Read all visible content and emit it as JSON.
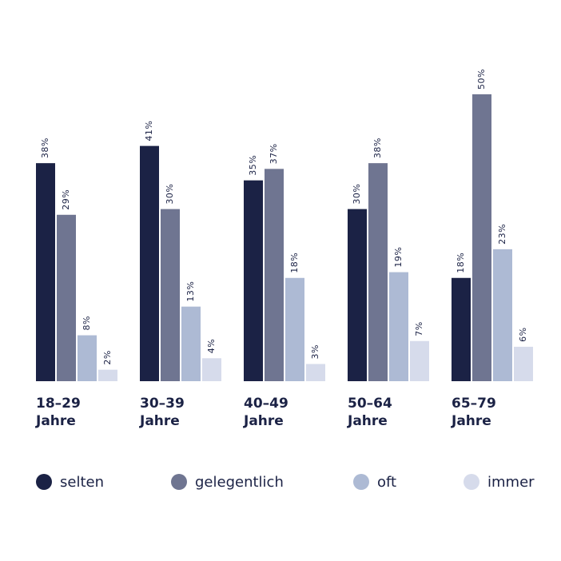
{
  "chart_data": {
    "type": "bar",
    "categories": [
      [
        "18–29",
        "Jahre"
      ],
      [
        "30–39",
        "Jahre"
      ],
      [
        "40–49",
        "Jahre"
      ],
      [
        "50–64",
        "Jahre"
      ],
      [
        "65–79",
        "Jahre"
      ]
    ],
    "series": [
      {
        "name": "selten",
        "color": "#1b2245",
        "values": [
          38,
          41,
          35,
          30,
          18
        ],
        "labels": [
          "38%",
          "41%",
          "35%",
          "30%",
          "18%"
        ]
      },
      {
        "name": "gelegentlich",
        "color": "#6f7591",
        "values": [
          29,
          30,
          37,
          38,
          50
        ],
        "labels": [
          "29%",
          "30%",
          "37%",
          "38%",
          "50%"
        ]
      },
      {
        "name": "oft",
        "color": "#adbad4",
        "values": [
          8,
          13,
          18,
          19,
          23
        ],
        "labels": [
          "8%",
          "13%",
          "18%",
          "19%",
          "23%"
        ]
      },
      {
        "name": "immer",
        "color": "#d6dbeb",
        "values": [
          2,
          4,
          3,
          7,
          6
        ],
        "labels": [
          "2%",
          "4%",
          "3%",
          "7%",
          "6%"
        ]
      }
    ],
    "ylim": [
      0,
      50
    ],
    "grid": false,
    "legend_position": "bottom"
  }
}
